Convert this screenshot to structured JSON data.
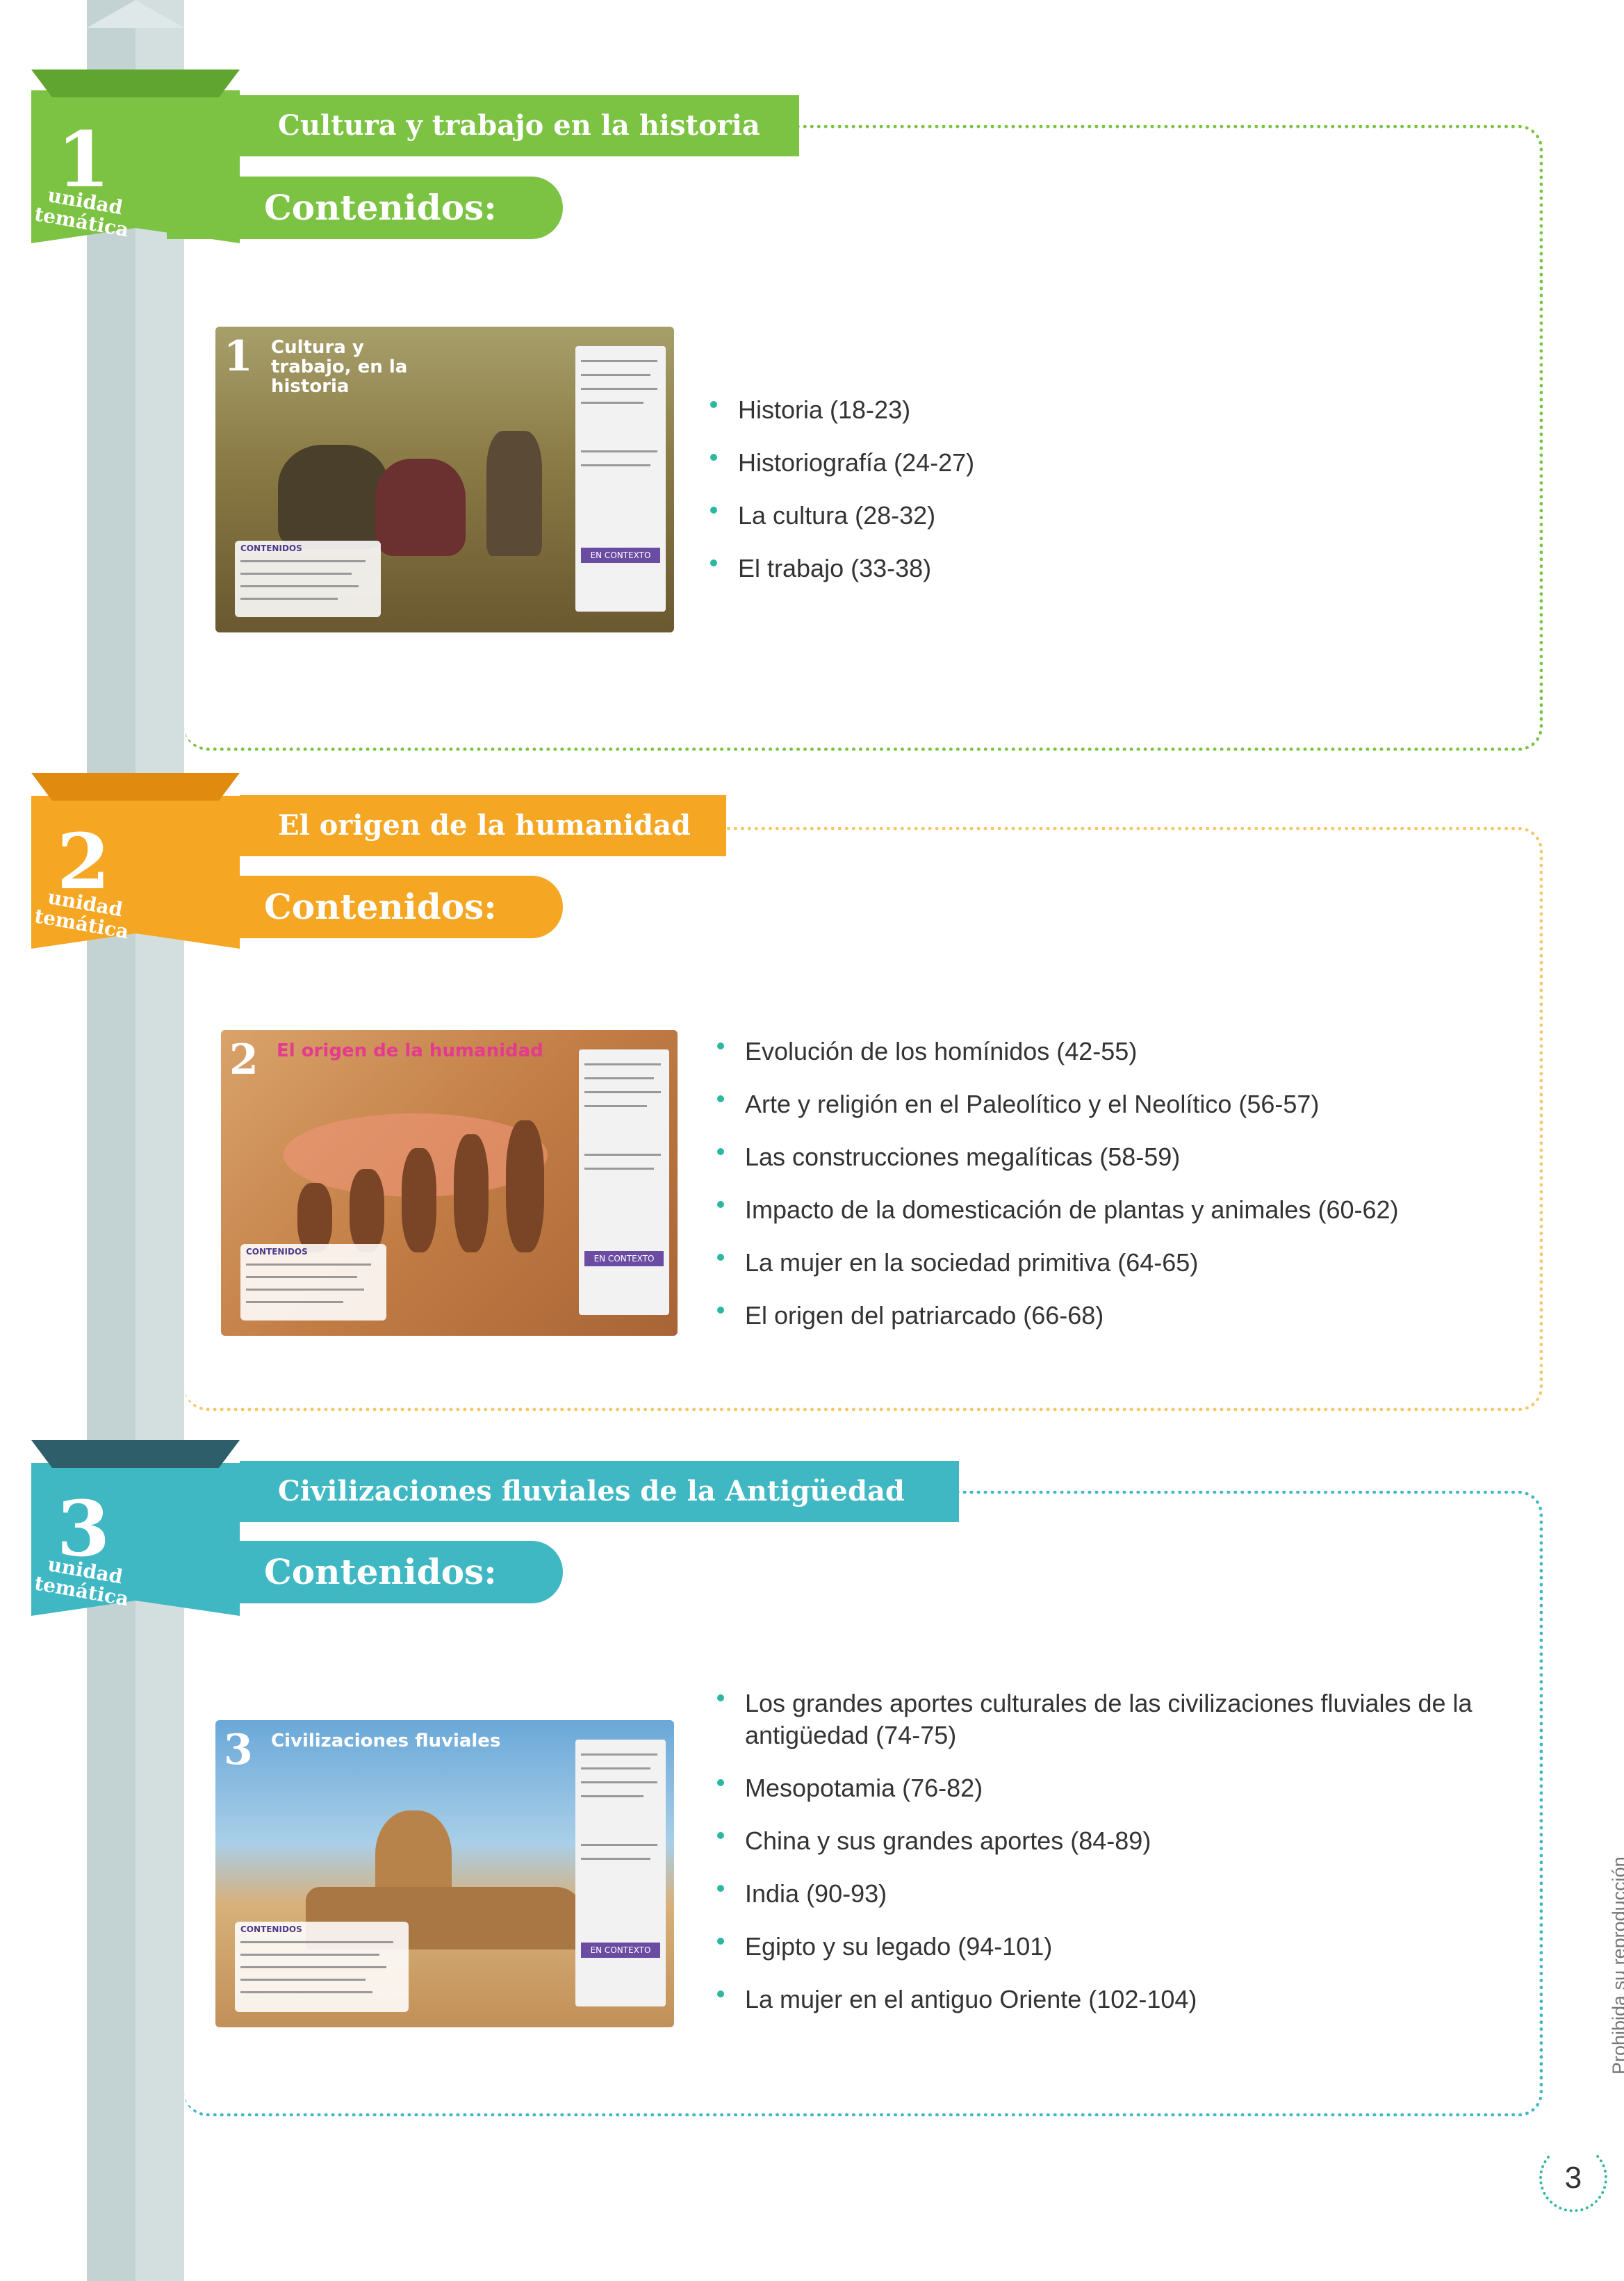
{
  "colors": {
    "green": "#7cc243",
    "orange": "#f5a623",
    "teal": "#3fb8c4",
    "pillar": "#c3d2d2"
  },
  "units": [
    {
      "number": "1",
      "label": "unidad temática",
      "title": "Cultura y trabajo en la historia",
      "contents_label": "Contenidos:",
      "thumb_title": "Cultura y trabajo, en la historia",
      "thumb_contents": "CONTENIDOS",
      "thumb_panel": "EN CONTEXTO",
      "topics": [
        "Historia (18-23)",
        "Historiografía (24-27)",
        "La cultura (28-32)",
        "El trabajo (33-38)"
      ]
    },
    {
      "number": "2",
      "label": "unidad temática",
      "title": "El origen de la humanidad",
      "contents_label": "Contenidos:",
      "thumb_title": "El origen de la humanidad",
      "thumb_contents": "CONTENIDOS",
      "thumb_panel": "EN CONTEXTO",
      "topics": [
        "Evolución de los homínidos (42-55)",
        "Arte y religión en el Paleolítico y el Neolítico (56-57)",
        "Las construcciones megalíticas (58-59)",
        "Impacto de la domesticación de plantas y animales (60-62)",
        "La mujer en la sociedad primitiva (64-65)",
        "El origen del patriarcado (66-68)"
      ]
    },
    {
      "number": "3",
      "label": "unidad temática",
      "title": "Civilizaciones fluviales de la Antigüedad",
      "contents_label": "Contenidos:",
      "thumb_title": "Civilizaciones fluviales",
      "thumb_contents": "CONTENIDOS",
      "thumb_panel": "EN CONTEXTO",
      "topics": [
        "Los grandes aportes culturales de las civilizaciones fluviales de la antigüedad (74-75)",
        "Mesopotamia (76-82)",
        "China y sus grandes aportes (84-89)",
        "India (90-93)",
        "Egipto y su legado (94-101)",
        "La mujer en el antiguo Oriente (102-104)"
      ]
    }
  ],
  "footer": {
    "side_note": "Prohibida su reproducción",
    "page_number": "3"
  }
}
